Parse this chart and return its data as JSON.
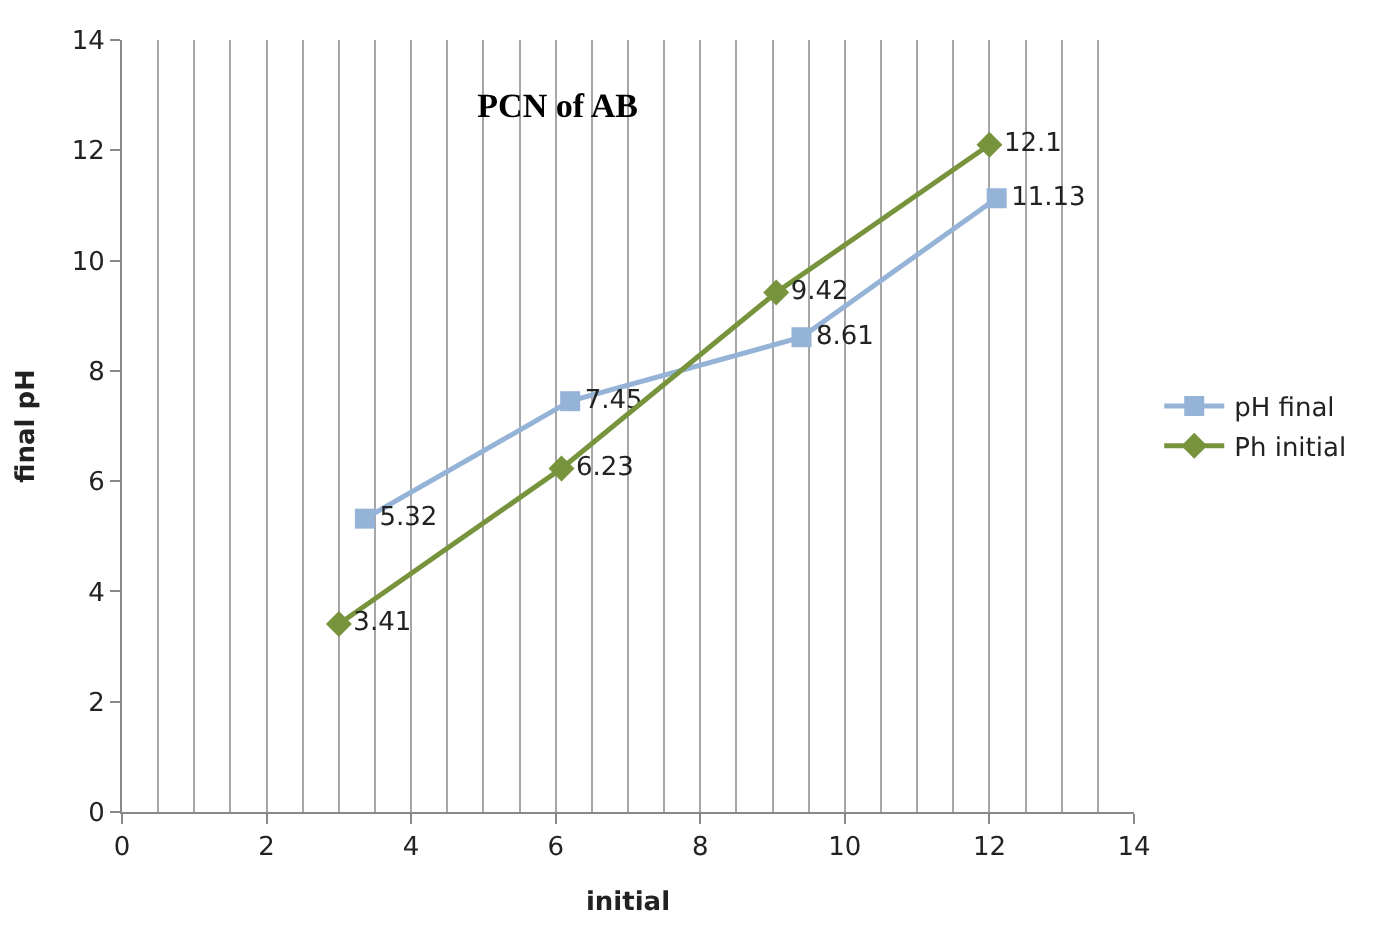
{
  "chart_data": {
    "type": "line",
    "title": "PCN of AB",
    "xlabel": "initial",
    "ylabel": "final pH",
    "xlim": [
      0,
      14
    ],
    "ylim": [
      0,
      14
    ],
    "xticks": [
      0,
      2,
      4,
      6,
      8,
      10,
      12,
      14
    ],
    "yticks": [
      0,
      2,
      4,
      6,
      8,
      10,
      12,
      14
    ],
    "grid": "x",
    "legend": "right",
    "data_labels": true,
    "line_style": "solid",
    "series": [
      {
        "name": "pH final",
        "color": "#95b3d7",
        "marker": "square",
        "x": [
          3.36,
          6.2,
          9.4,
          12.1
        ],
        "values": [
          5.32,
          7.45,
          8.61,
          11.13
        ]
      },
      {
        "name": "Ph initial",
        "color": "#77933c",
        "marker": "diamond",
        "x": [
          3.0,
          6.08,
          9.05,
          12.0
        ],
        "values": [
          3.41,
          6.23,
          9.42,
          12.1
        ]
      }
    ]
  }
}
